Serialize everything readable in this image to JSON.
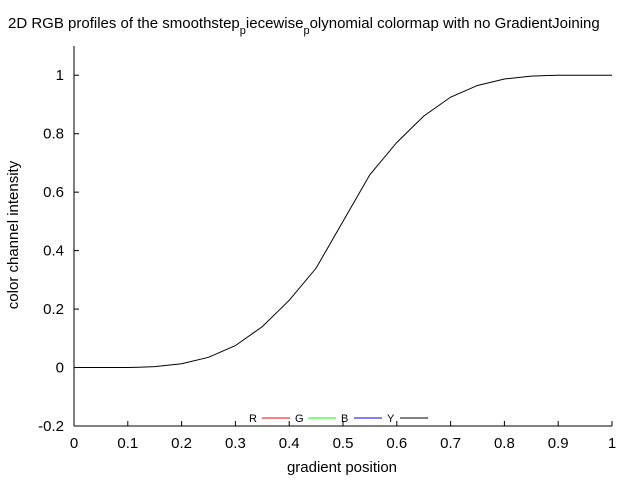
{
  "chart_data": {
    "type": "line",
    "title_parts": [
      {
        "text": "2D RGB profiles of the smoothstep",
        "sub": false
      },
      {
        "text": "p",
        "sub": true
      },
      {
        "text": "iecewise",
        "sub": false
      },
      {
        "text": "p",
        "sub": true
      },
      {
        "text": "olynomial colormap with no GradientJoining",
        "sub": false
      }
    ],
    "xlabel": "gradient position",
    "ylabel": "color channel intensity",
    "xlim": [
      0,
      1
    ],
    "ylim": [
      -0.2,
      1.1
    ],
    "xticks": [
      "0",
      "0.1",
      "0.2",
      "0.3",
      "0.4",
      "0.5",
      "0.6",
      "0.7",
      "0.8",
      "0.9",
      "1"
    ],
    "yticks": [
      "-0.2",
      "0",
      "0.2",
      "0.4",
      "0.6",
      "0.8",
      "1"
    ],
    "grid": false,
    "legend_position": "bottom-center",
    "series": [
      {
        "name": "R",
        "color": "#ff0000",
        "x": [],
        "y": []
      },
      {
        "name": "G",
        "color": "#00ff00",
        "x": [],
        "y": []
      },
      {
        "name": "B",
        "color": "#0000ff",
        "x": [],
        "y": []
      },
      {
        "name": "Y",
        "color": "#000000",
        "x": [
          0,
          0.05,
          0.1,
          0.12,
          0.15,
          0.2,
          0.25,
          0.3,
          0.35,
          0.4,
          0.45,
          0.5,
          0.55,
          0.6,
          0.65,
          0.7,
          0.75,
          0.8,
          0.85,
          0.88,
          0.9,
          0.95,
          1
        ],
        "y": [
          0,
          0,
          0,
          0.001,
          0.003,
          0.013,
          0.035,
          0.075,
          0.14,
          0.23,
          0.34,
          0.5,
          0.66,
          0.77,
          0.86,
          0.925,
          0.965,
          0.987,
          0.997,
          0.999,
          1,
          1,
          1
        ]
      }
    ]
  }
}
